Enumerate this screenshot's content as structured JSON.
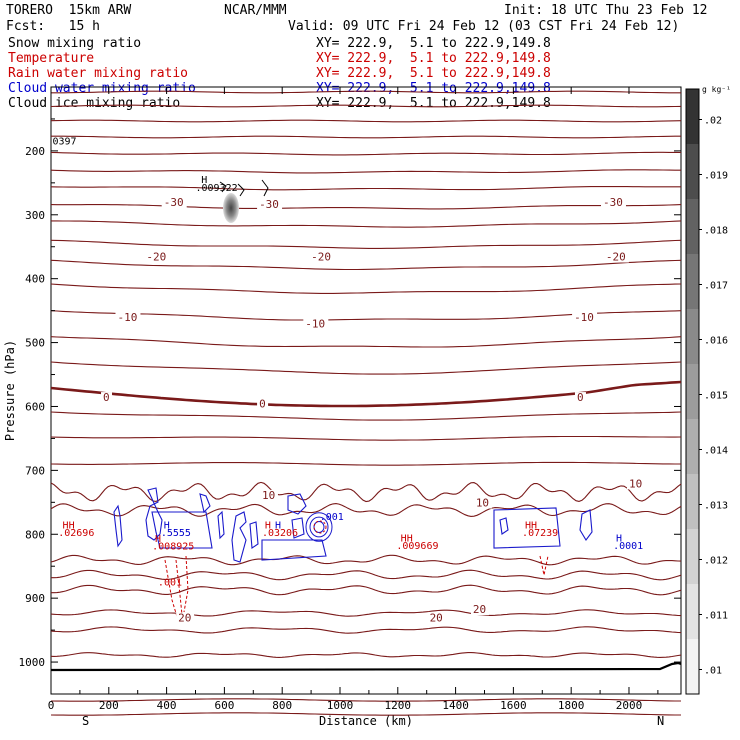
{
  "header": {
    "left_line1": "TORERO  15km ARW",
    "left_line2": "Fcst:   15 h",
    "center": "NCAR/MMM",
    "init": "Init: 18 UTC Thu 23 Feb 12",
    "valid": "Valid: 09 UTC Fri 24 Feb 12 (03 CST Fri 24 Feb 12)"
  },
  "fields": [
    {
      "name": "Snow mixing ratio",
      "xy": "XY= 222.9,  5.1 to 222.9,149.8",
      "color": "#000000"
    },
    {
      "name": "Temperature",
      "xy": "XY= 222.9,  5.1 to 222.9,149.8",
      "color": "#cc0000"
    },
    {
      "name": "Rain water mixing ratio",
      "xy": "XY= 222.9,  5.1 to 222.9,149.8",
      "color": "#cc0000"
    },
    {
      "name": "Cloud water mixing ratio",
      "xy": "XY= 222.9,  5.1 to 222.9,149.8",
      "color": "#0000cc"
    },
    {
      "name": "Cloud ice mixing ratio",
      "xy": "XY= 222.9,  5.1 to 222.9,149.8",
      "color": "#000000"
    }
  ],
  "chart_data": {
    "type": "contour",
    "xlabel": "Distance (km)",
    "ylabel": "Pressure (hPa)",
    "xlim": [
      0,
      2180
    ],
    "ylim": [
      1050,
      100
    ],
    "x_ticks": [
      0,
      200,
      400,
      600,
      800,
      1000,
      1200,
      1400,
      1600,
      1800,
      2000
    ],
    "y_ticks": [
      200,
      300,
      400,
      500,
      600,
      700,
      800,
      900,
      1000
    ],
    "x_end_labels": {
      "left": "S",
      "right": "N"
    },
    "temperature_labels": [
      {
        "text": "-30",
        "x": 390,
        "p": 285
      },
      {
        "text": "-30",
        "x": 720,
        "p": 288
      },
      {
        "text": "-30",
        "x": 1910,
        "p": 285
      },
      {
        "text": "-20",
        "x": 330,
        "p": 370
      },
      {
        "text": "-20",
        "x": 900,
        "p": 370
      },
      {
        "text": "-20",
        "x": 1920,
        "p": 370
      },
      {
        "text": "-10",
        "x": 230,
        "p": 465
      },
      {
        "text": "-10",
        "x": 880,
        "p": 475
      },
      {
        "text": "-10",
        "x": 1810,
        "p": 465
      },
      {
        "text": "0",
        "x": 180,
        "p": 590
      },
      {
        "text": "0",
        "x": 720,
        "p": 600
      },
      {
        "text": "0",
        "x": 1820,
        "p": 590
      },
      {
        "text": "10",
        "x": 730,
        "p": 743
      },
      {
        "text": "10",
        "x": 1470,
        "p": 755
      },
      {
        "text": "10",
        "x": 2000,
        "p": 725
      },
      {
        "text": "20",
        "x": 440,
        "p": 935
      },
      {
        "text": "20",
        "x": 1310,
        "p": 935
      },
      {
        "text": "20",
        "x": 1460,
        "p": 922
      }
    ],
    "annotations": [
      {
        "text": "H",
        "x": 520,
        "p": 250,
        "color": "#000000"
      },
      {
        "text": ".009322",
        "x": 500,
        "p": 263,
        "color": "#000000"
      },
      {
        "text": "0397",
        "x": 5,
        "p": 190,
        "color": "#000000"
      },
      {
        "text": "HH",
        "x": 40,
        "p": 791,
        "color": "#cc0000"
      },
      {
        "text": ".02696",
        "x": 25,
        "p": 803,
        "color": "#cc0000"
      },
      {
        "text": "H",
        "x": 390,
        "p": 791,
        "color": "#0000cc"
      },
      {
        "text": ".5555",
        "x": 380,
        "p": 803,
        "color": "#0000cc"
      },
      {
        "text": "H",
        "x": 360,
        "p": 812,
        "color": "#cc0000"
      },
      {
        "text": ".008925",
        "x": 350,
        "p": 824,
        "color": "#cc0000"
      },
      {
        "text": "H",
        "x": 740,
        "p": 791,
        "color": "#cc0000"
      },
      {
        "text": "H",
        "x": 775,
        "p": 791,
        "color": "#0000cc"
      },
      {
        "text": ".03206",
        "x": 730,
        "p": 803,
        "color": "#cc0000"
      },
      {
        "text": ".001",
        "x": 930,
        "p": 778,
        "color": "#0000cc"
      },
      {
        "text": "HH",
        "x": 1210,
        "p": 811,
        "color": "#cc0000"
      },
      {
        "text": ".009669",
        "x": 1195,
        "p": 823,
        "color": "#cc0000"
      },
      {
        "text": "HH",
        "x": 1640,
        "p": 791,
        "color": "#cc0000"
      },
      {
        "text": ".07239",
        "x": 1630,
        "p": 803,
        "color": "#cc0000"
      },
      {
        "text": "H",
        "x": 1955,
        "p": 811,
        "color": "#0000cc"
      },
      {
        "text": ".0001",
        "x": 1945,
        "p": 823,
        "color": "#0000cc"
      },
      {
        "text": ".001",
        "x": 370,
        "p": 880,
        "color": "#cc0000"
      }
    ],
    "colorbar": {
      "unit": "g kg⁻¹",
      "labels": [
        ".02",
        ".019",
        ".018",
        ".017",
        ".016",
        ".015",
        ".014",
        ".013",
        ".012",
        ".011",
        ".01"
      ],
      "colors": [
        "#333333",
        "#4d4d4d",
        "#626262",
        "#767676",
        "#8a8a8a",
        "#9c9c9c",
        "#aeaeae",
        "#c0c0c0",
        "#d2d2d2",
        "#e3e3e3",
        "#f3f3f3"
      ]
    }
  }
}
